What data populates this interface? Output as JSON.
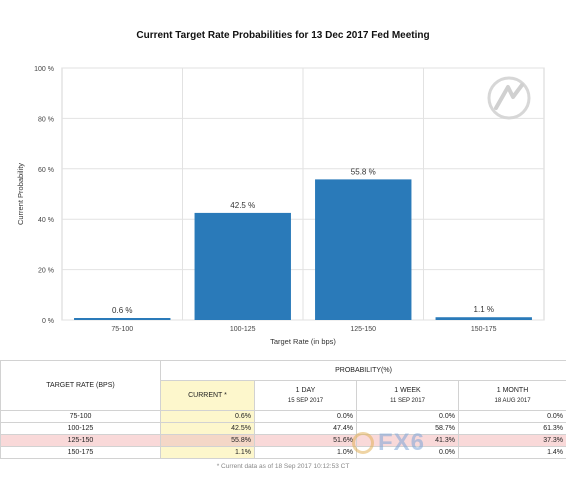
{
  "chart_data": {
    "type": "bar",
    "title": "Current Target Rate Probabilities for 13 Dec 2017 Fed Meeting",
    "xlabel": "Target Rate (in bps)",
    "ylabel": "Current Probability",
    "categories": [
      "75-100",
      "100-125",
      "125-150",
      "150-175"
    ],
    "values": [
      0.6,
      42.5,
      55.8,
      1.1
    ],
    "data_labels": [
      "0.6 %",
      "42.5 %",
      "55.8 %",
      "1.1 %"
    ],
    "ylim": [
      0,
      100
    ],
    "yticks": [
      0,
      20,
      40,
      60,
      80,
      100
    ],
    "ytick_labels": [
      "0 %",
      "20 %",
      "40 %",
      "60 %",
      "80 %",
      "100 %"
    ],
    "grid": true,
    "bar_color": "#2a7ab9"
  },
  "table": {
    "rate_header": "TARGET RATE (BPS)",
    "prob_header": "PROBABILITY(%)",
    "columns": [
      {
        "name": "CURRENT *",
        "date": ""
      },
      {
        "name": "1 DAY",
        "date": "15 SEP 2017"
      },
      {
        "name": "1 WEEK",
        "date": "11 SEP 2017"
      },
      {
        "name": "1 MONTH",
        "date": "18 AUG 2017"
      }
    ],
    "rows": [
      {
        "rate": "75-100",
        "values": [
          "0.6%",
          "0.0%",
          "0.0%",
          "0.0%"
        ]
      },
      {
        "rate": "100-125",
        "values": [
          "42.5%",
          "47.4%",
          "58.7%",
          "61.3%"
        ]
      },
      {
        "rate": "125-150",
        "values": [
          "55.8%",
          "51.6%",
          "41.3%",
          "37.3%"
        ]
      },
      {
        "rate": "150-175",
        "values": [
          "1.1%",
          "1.0%",
          "0.0%",
          "1.4%"
        ]
      }
    ],
    "highlight_row": 2
  },
  "footnote": "* Current data as of 18 Sep 2017 10:12:53 CT",
  "brand_watermark": "FX6",
  "colors": {
    "current_col_bg": "#fdf7cc",
    "highlight_row_bg": "#f9d9d9"
  }
}
